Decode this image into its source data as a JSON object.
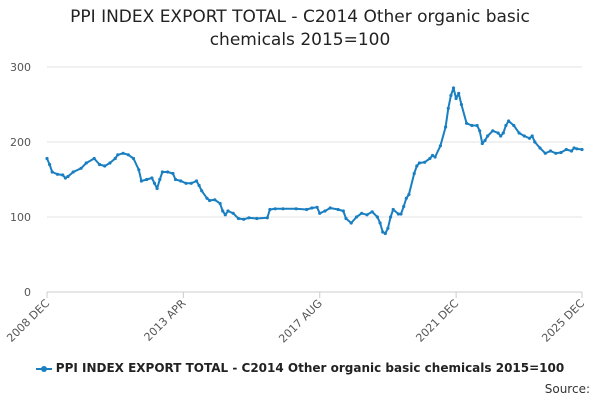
{
  "chart_data": {
    "type": "line",
    "title": "PPI INDEX EXPORT TOTAL - C2014 Other organic basic chemicals 2015=100",
    "title_lines": [
      "PPI INDEX EXPORT TOTAL - C2014 Other organic basic",
      "chemicals 2015=100"
    ],
    "xlabel": "",
    "ylabel": "",
    "ylim": [
      0,
      300
    ],
    "yticks": [
      "0",
      "100",
      "200",
      "300"
    ],
    "xticks": [
      {
        "label": "2008 DEC",
        "t": 0
      },
      {
        "label": "2013 APR",
        "t": 52
      },
      {
        "label": "2017 AUG",
        "t": 104
      },
      {
        "label": "2021 DEC",
        "t": 156
      },
      {
        "label": "2025 DEC",
        "t": 204
      }
    ],
    "grid": true,
    "legend_position": "bottom",
    "series": [
      {
        "name": "PPI INDEX EXPORT TOTAL - C2014 Other organic basic chemicals 2015=100",
        "color": "#1a7fc1",
        "keypoints": [
          [
            0,
            178
          ],
          [
            1,
            170
          ],
          [
            2,
            160
          ],
          [
            4,
            157
          ],
          [
            6,
            156
          ],
          [
            7,
            152
          ],
          [
            8,
            154
          ],
          [
            10,
            160
          ],
          [
            13,
            165
          ],
          [
            15,
            172
          ],
          [
            18,
            178
          ],
          [
            20,
            170
          ],
          [
            22,
            168
          ],
          [
            24,
            172
          ],
          [
            26,
            178
          ],
          [
            27,
            183
          ],
          [
            29,
            185
          ],
          [
            31,
            183
          ],
          [
            33,
            178
          ],
          [
            35,
            163
          ],
          [
            36,
            148
          ],
          [
            38,
            150
          ],
          [
            40,
            152
          ],
          [
            41,
            145
          ],
          [
            42,
            138
          ],
          [
            43,
            150
          ],
          [
            44,
            160
          ],
          [
            46,
            160
          ],
          [
            48,
            158
          ],
          [
            49,
            150
          ],
          [
            51,
            148
          ],
          [
            53,
            145
          ],
          [
            55,
            145
          ],
          [
            57,
            148
          ],
          [
            58,
            142
          ],
          [
            59,
            135
          ],
          [
            61,
            125
          ],
          [
            62,
            122
          ],
          [
            64,
            123
          ],
          [
            66,
            118
          ],
          [
            67,
            108
          ],
          [
            68,
            103
          ],
          [
            69,
            108
          ],
          [
            71,
            105
          ],
          [
            73,
            98
          ],
          [
            75,
            97
          ],
          [
            77,
            99
          ],
          [
            80,
            98
          ],
          [
            84,
            99
          ],
          [
            85,
            110
          ],
          [
            87,
            111
          ],
          [
            90,
            111
          ],
          [
            95,
            111
          ],
          [
            99,
            110
          ],
          [
            101,
            112
          ],
          [
            103,
            113
          ],
          [
            104,
            105
          ],
          [
            106,
            108
          ],
          [
            108,
            112
          ],
          [
            111,
            110
          ],
          [
            113,
            108
          ],
          [
            114,
            98
          ],
          [
            116,
            92
          ],
          [
            118,
            100
          ],
          [
            120,
            105
          ],
          [
            122,
            103
          ],
          [
            124,
            107
          ],
          [
            126,
            100
          ],
          [
            127,
            92
          ],
          [
            128,
            80
          ],
          [
            129,
            78
          ],
          [
            130,
            85
          ],
          [
            131,
            100
          ],
          [
            132,
            110
          ],
          [
            134,
            104
          ],
          [
            135,
            104
          ],
          [
            136,
            114
          ],
          [
            137,
            125
          ],
          [
            138,
            130
          ],
          [
            140,
            158
          ],
          [
            141,
            168
          ],
          [
            142,
            172
          ],
          [
            144,
            173
          ],
          [
            146,
            178
          ],
          [
            147,
            182
          ],
          [
            148,
            180
          ],
          [
            150,
            195
          ],
          [
            152,
            220
          ],
          [
            153,
            245
          ],
          [
            154,
            262
          ],
          [
            155,
            272
          ],
          [
            156,
            258
          ],
          [
            157,
            265
          ],
          [
            158,
            250
          ],
          [
            160,
            225
          ],
          [
            162,
            222
          ],
          [
            164,
            222
          ],
          [
            165,
            215
          ],
          [
            166,
            198
          ],
          [
            167,
            202
          ],
          [
            168,
            208
          ],
          [
            170,
            215
          ],
          [
            172,
            212
          ],
          [
            173,
            208
          ],
          [
            174,
            212
          ],
          [
            175,
            222
          ],
          [
            176,
            228
          ],
          [
            178,
            222
          ],
          [
            180,
            212
          ],
          [
            182,
            208
          ],
          [
            184,
            205
          ],
          [
            185,
            208
          ],
          [
            186,
            200
          ],
          [
            188,
            192
          ],
          [
            190,
            185
          ],
          [
            192,
            188
          ],
          [
            194,
            185
          ],
          [
            196,
            186
          ],
          [
            198,
            190
          ],
          [
            200,
            188
          ],
          [
            201,
            192
          ],
          [
            202,
            191
          ],
          [
            204,
            190
          ]
        ]
      }
    ]
  },
  "legend_label": "PPI INDEX EXPORT TOTAL - C2014 Other organic basic chemicals 2015=100",
  "source_label": "Source:"
}
